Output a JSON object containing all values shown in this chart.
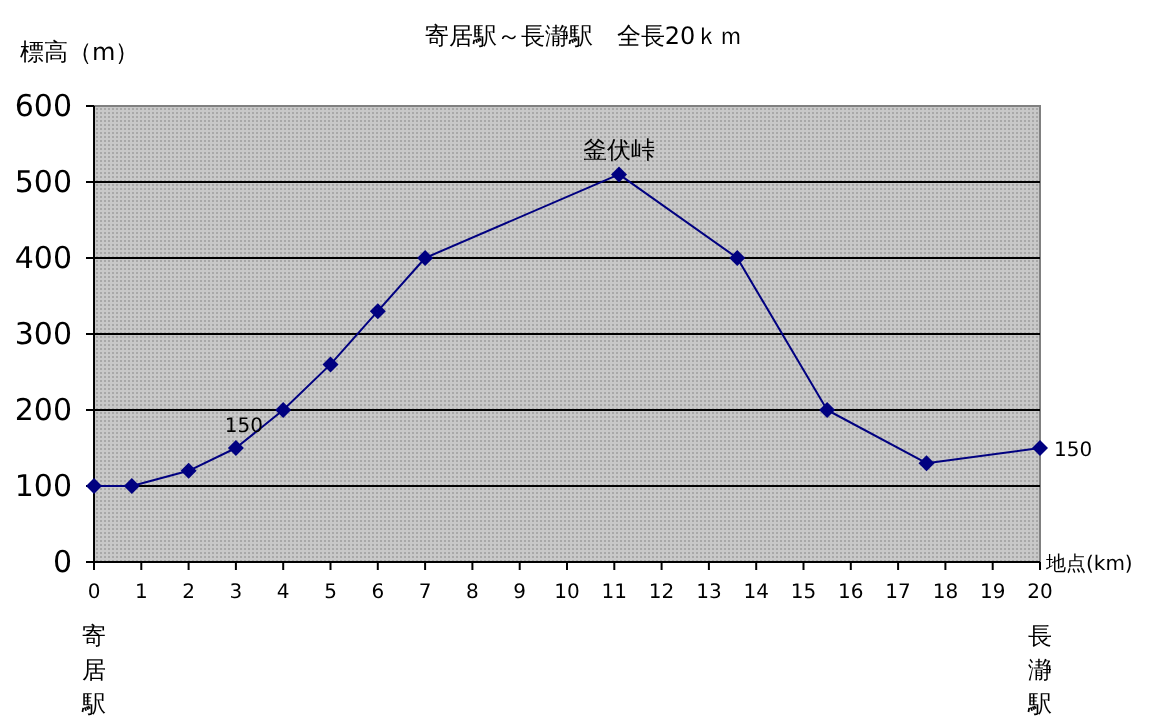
{
  "chart_data": {
    "type": "line",
    "title": "寄居駅～長瀞駅　全長20ｋｍ",
    "xlabel": "地点(km)",
    "ylabel": "標高（m）",
    "x": [
      0,
      0.8,
      2,
      3,
      4,
      5,
      6,
      7,
      11.1,
      13.6,
      15.5,
      17.6,
      20
    ],
    "series": [
      {
        "color": "#000080",
        "values": [
          100,
          100,
          120,
          150,
          200,
          260,
          330,
          400,
          510,
          400,
          200,
          130,
          150
        ],
        "value_labels": [
          null,
          null,
          null,
          "150",
          null,
          null,
          null,
          null,
          null,
          null,
          null,
          null,
          "150"
        ]
      }
    ],
    "annotations": [
      {
        "text": "釜伏峠",
        "x": 11.1,
        "y": 510
      },
      "寄居駅",
      "長瀞駅"
    ],
    "xlim": [
      0,
      20
    ],
    "ylim": [
      0,
      600
    ],
    "xticks": [
      0,
      1,
      2,
      3,
      4,
      5,
      6,
      7,
      8,
      9,
      10,
      11,
      12,
      13,
      14,
      15,
      16,
      17,
      18,
      19,
      20
    ],
    "yticks": [
      0,
      100,
      200,
      300,
      400,
      500,
      600
    ],
    "grid": "y",
    "marker": "diamond",
    "line_style": "solid"
  }
}
